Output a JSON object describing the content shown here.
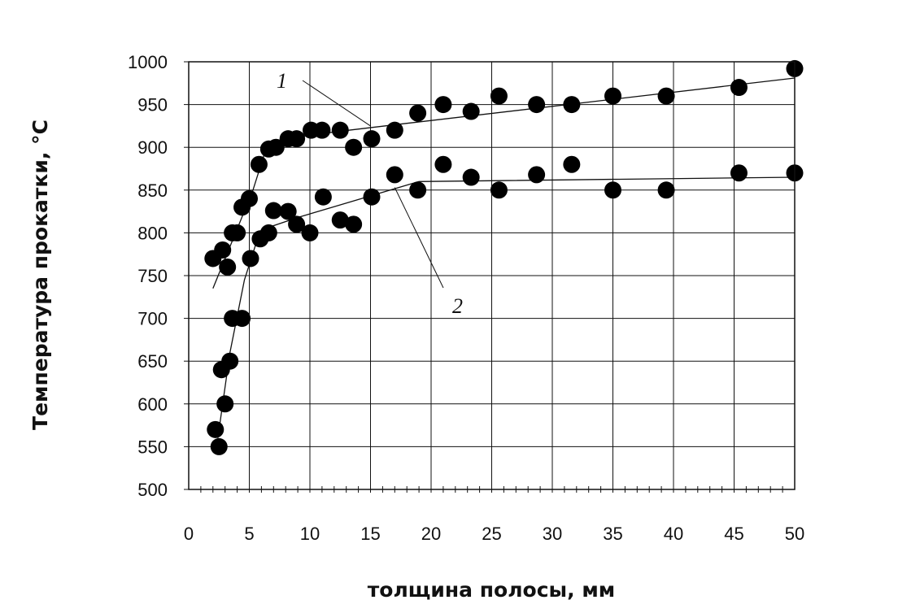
{
  "chart_data": {
    "type": "scatter",
    "xlabel": "толщина полосы, мм",
    "ylabel": "Температура прокатки, °C",
    "xlim": [
      0,
      50
    ],
    "ylim": [
      500,
      1000
    ],
    "x_ticks": [
      "0",
      "5",
      "10",
      "15",
      "20",
      "25",
      "30",
      "35",
      "40",
      "45",
      "50"
    ],
    "y_ticks": [
      "500",
      "550",
      "600",
      "650",
      "700",
      "750",
      "800",
      "850",
      "900",
      "950",
      "1000"
    ],
    "grid": true,
    "marker_color": "#000000",
    "series": [
      {
        "name": "1",
        "points": [
          [
            2.0,
            770
          ],
          [
            2.8,
            780
          ],
          [
            3.2,
            760
          ],
          [
            3.6,
            800
          ],
          [
            4.0,
            800
          ],
          [
            4.4,
            830
          ],
          [
            5.0,
            840
          ],
          [
            5.8,
            880
          ],
          [
            6.6,
            898
          ],
          [
            7.2,
            900
          ],
          [
            8.2,
            910
          ],
          [
            8.9,
            910
          ],
          [
            10.1,
            920
          ],
          [
            11.0,
            920
          ],
          [
            12.5,
            920
          ],
          [
            13.6,
            900
          ],
          [
            15.1,
            910
          ],
          [
            17.0,
            920
          ],
          [
            18.9,
            940
          ],
          [
            21.0,
            950
          ],
          [
            23.3,
            942
          ],
          [
            25.6,
            960
          ],
          [
            28.7,
            950
          ],
          [
            31.6,
            950
          ],
          [
            35.0,
            960
          ],
          [
            39.4,
            960
          ],
          [
            45.4,
            970
          ],
          [
            50.0,
            992
          ]
        ],
        "fit": [
          [
            2.0,
            735
          ],
          [
            5.3,
            850
          ],
          [
            6.3,
            895
          ],
          [
            8.0,
            910
          ],
          [
            12.0,
            918
          ],
          [
            18.0,
            928
          ],
          [
            50.0,
            981
          ]
        ]
      },
      {
        "name": "2",
        "points": [
          [
            2.2,
            570
          ],
          [
            2.5,
            550
          ],
          [
            2.7,
            640
          ],
          [
            3.0,
            600
          ],
          [
            3.4,
            650
          ],
          [
            3.6,
            700
          ],
          [
            4.4,
            700
          ],
          [
            5.1,
            770
          ],
          [
            5.9,
            793
          ],
          [
            6.6,
            800
          ],
          [
            7.0,
            826
          ],
          [
            8.2,
            825
          ],
          [
            8.9,
            810
          ],
          [
            10.0,
            800
          ],
          [
            11.1,
            842
          ],
          [
            12.5,
            815
          ],
          [
            13.6,
            810
          ],
          [
            15.1,
            842
          ],
          [
            17.0,
            868
          ],
          [
            18.9,
            850
          ],
          [
            21.0,
            880
          ],
          [
            23.3,
            865
          ],
          [
            25.6,
            850
          ],
          [
            28.7,
            868
          ],
          [
            31.6,
            880
          ],
          [
            35.0,
            850
          ],
          [
            39.4,
            850
          ],
          [
            45.4,
            870
          ],
          [
            50.0,
            870
          ]
        ],
        "fit": [
          [
            2.4,
            560
          ],
          [
            3.4,
            660
          ],
          [
            4.6,
            745
          ],
          [
            5.5,
            785
          ],
          [
            6.5,
            806
          ],
          [
            9.0,
            818
          ],
          [
            19.0,
            860
          ],
          [
            50.0,
            865
          ]
        ]
      }
    ],
    "annotations": [
      {
        "text": "1",
        "series": "1"
      },
      {
        "text": "2",
        "series": "2"
      }
    ]
  }
}
